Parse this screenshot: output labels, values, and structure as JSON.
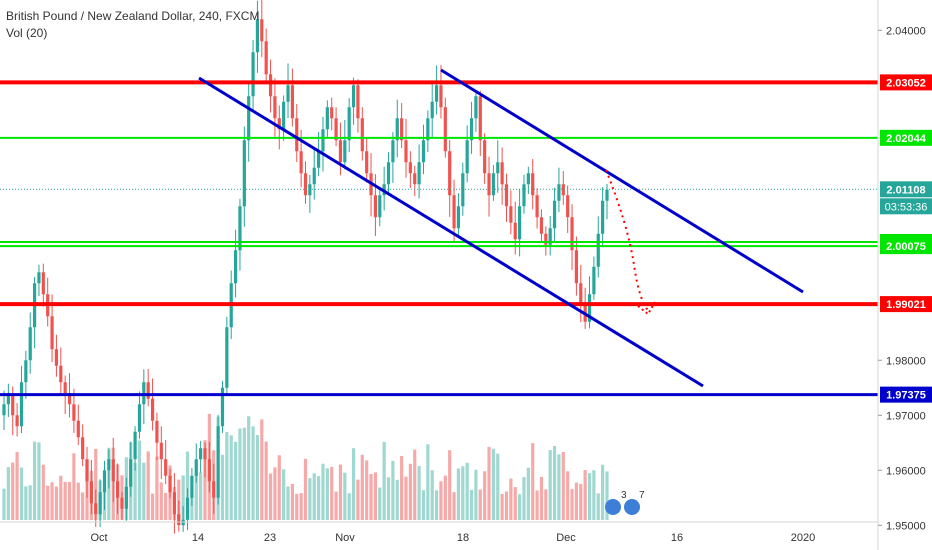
{
  "header": {
    "symbol_line": "British Pound / New Zealand Dollar, 240, FXCM",
    "volume_label": "Vol (20)"
  },
  "colors": {
    "up": "#26a69a",
    "down": "#ef5350",
    "up_volume": "#9fd7d1",
    "down_volume": "#f5a9a8",
    "resistance": "#ff0000",
    "support_green": "#00e600",
    "channel": "#0000cc",
    "price_line": "#26a69a",
    "axis_text": "#333333",
    "badge_text": "#ffffff"
  },
  "chart_data": {
    "type": "candlestick",
    "instrument": "British Pound / New Zealand Dollar",
    "timeframe": "240",
    "source": "FXCM",
    "ylim": [
      1.9455,
      2.0455
    ],
    "y_ticks": [
      "2.04000",
      "1.98000",
      "1.97000",
      "1.96000",
      "1.95000"
    ],
    "x_ticks": [
      "Oct",
      "14",
      "23",
      "Nov",
      "18",
      "Dec",
      "16",
      "2020"
    ],
    "grid": false,
    "horizontal_levels": [
      {
        "name": "resistance",
        "value": 2.03052,
        "label": "2.03052",
        "color": "#ff0000"
      },
      {
        "name": "green-upper",
        "value": 2.02044,
        "label": "2.02044",
        "color": "#00e600"
      },
      {
        "name": "green-lower-a",
        "value": 2.0015,
        "label": "2.00150",
        "color": "#00e600"
      },
      {
        "name": "green-lower-b",
        "value": 2.00075,
        "label": "2.00075",
        "color": "#00e600"
      },
      {
        "name": "support",
        "value": 1.99021,
        "label": "1.99021",
        "color": "#ff0000"
      },
      {
        "name": "blue-support",
        "value": 1.97375,
        "label": "1.97375",
        "color": "#0000cc"
      }
    ],
    "last_price": {
      "value": 2.01108,
      "label": "2.01108",
      "countdown": "03:53:36"
    },
    "indicator_badges": [
      "3",
      "7"
    ],
    "close_series": [
      1.972,
      1.974,
      1.97,
      1.968,
      1.976,
      1.98,
      1.986,
      1.994,
      1.996,
      1.992,
      1.988,
      1.982,
      1.979,
      1.976,
      1.974,
      1.972,
      1.969,
      1.966,
      1.962,
      1.958,
      1.954,
      1.952,
      1.956,
      1.96,
      1.962,
      1.958,
      1.955,
      1.953,
      1.957,
      1.962,
      1.967,
      1.972,
      1.976,
      1.973,
      1.969,
      1.965,
      1.962,
      1.959,
      1.956,
      1.952,
      1.95,
      1.951,
      1.955,
      1.959,
      1.962,
      1.964,
      1.962,
      1.958,
      1.955,
      1.968,
      1.975,
      1.986,
      1.994,
      2.0,
      2.008,
      2.02,
      2.028,
      2.036,
      2.042,
      2.038,
      2.032,
      2.028,
      2.024,
      2.022,
      2.027,
      2.03,
      2.024,
      2.018,
      2.014,
      2.01,
      2.012,
      2.015,
      2.018,
      2.022,
      2.026,
      2.024,
      2.02,
      2.016,
      2.02,
      2.026,
      2.03,
      2.024,
      2.018,
      2.014,
      2.01,
      2.006,
      2.01,
      2.012,
      2.016,
      2.02,
      2.024,
      2.02,
      2.016,
      2.014,
      2.012,
      2.016,
      2.02,
      2.024,
      2.027,
      2.03,
      2.026,
      2.018,
      2.01,
      2.004,
      2.008,
      2.014,
      2.02,
      2.024,
      2.028,
      2.02,
      2.014,
      2.01,
      2.014,
      2.016,
      2.012,
      2.008,
      2.005,
      2.002,
      2.008,
      2.012,
      2.014,
      2.01,
      2.006,
      2.003,
      2.001,
      2.004,
      2.009,
      2.012,
      2.01,
      2.006,
      2.0,
      1.994,
      1.99,
      1.987,
      1.992,
      1.997,
      2.003,
      2.009,
      2.011
    ]
  }
}
